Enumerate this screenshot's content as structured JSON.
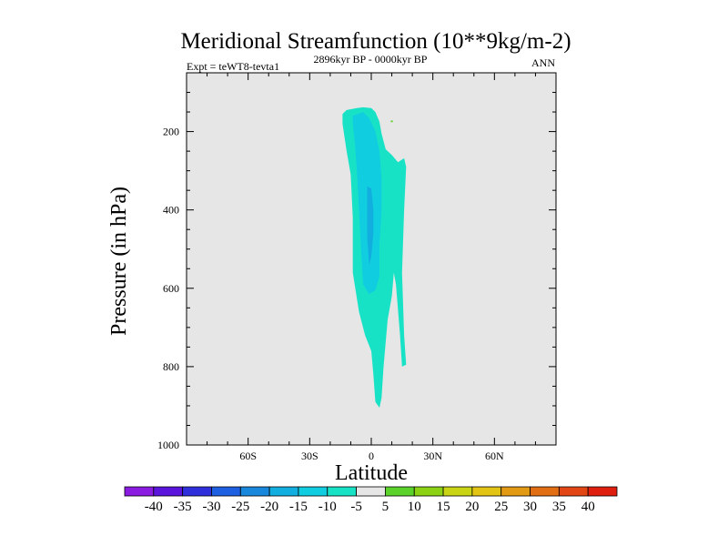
{
  "chart_data": {
    "type": "contour",
    "title": "Meridional Streamfunction (10**9kg/m-2)",
    "subtitle_left": "Expt = teWT8-tevta1",
    "subtitle_center": "2896kyr BP - 0000kyr BP",
    "subtitle_right": "ANN",
    "xlabel": "Latitude",
    "ylabel": "Pressure (in hPa)",
    "xlim": [
      -90,
      90
    ],
    "ylim": [
      1000,
      50
    ],
    "x_ticks": [
      {
        "value": -60,
        "label": "60S"
      },
      {
        "value": -30,
        "label": "30S"
      },
      {
        "value": 0,
        "label": "0"
      },
      {
        "value": 30,
        "label": "30N"
      },
      {
        "value": 60,
        "label": "60N"
      }
    ],
    "y_ticks": [
      {
        "value": 200,
        "label": "200"
      },
      {
        "value": 400,
        "label": "400"
      },
      {
        "value": 600,
        "label": "600"
      },
      {
        "value": 800,
        "label": "800"
      },
      {
        "value": 1000,
        "label": "1000"
      }
    ],
    "background_color": "#e6e6e6",
    "colorbar": {
      "levels": [
        "-40",
        "-35",
        "-30",
        "-25",
        "-20",
        "-15",
        "-10",
        "-5",
        "5",
        "10",
        "15",
        "20",
        "25",
        "30",
        "35",
        "40"
      ],
      "colors": [
        "#8a1be0",
        "#5a14dc",
        "#2f2fdc",
        "#1e5ee0",
        "#1888dc",
        "#13aee0",
        "#10cde0",
        "#18e2c6",
        "#e6e6e6",
        "#5ad22a",
        "#8cd214",
        "#c8d414",
        "#e2c414",
        "#e29a14",
        "#e26e14",
        "#e24614",
        "#e01e10"
      ]
    },
    "regions": [
      {
        "name": "contour-region-minus-5-to-minus-10",
        "level": "-10 to -5",
        "color": "#18e2c6",
        "points": [
          [
            -12,
            145
          ],
          [
            -7,
            140
          ],
          [
            -4,
            138
          ],
          [
            0,
            140
          ],
          [
            2,
            150
          ],
          [
            4,
            175
          ],
          [
            5,
            205
          ],
          [
            7,
            245
          ],
          [
            10,
            260
          ],
          [
            13,
            278
          ],
          [
            16,
            268
          ],
          [
            17,
            290
          ],
          [
            16,
            400
          ],
          [
            15,
            560
          ],
          [
            16,
            720
          ],
          [
            17,
            795
          ],
          [
            15,
            800
          ],
          [
            14,
            720
          ],
          [
            12,
            590
          ],
          [
            11,
            560
          ],
          [
            10,
            620
          ],
          [
            8,
            680
          ],
          [
            6,
            800
          ],
          [
            5,
            880
          ],
          [
            4,
            905
          ],
          [
            2,
            890
          ],
          [
            1,
            820
          ],
          [
            0,
            760
          ],
          [
            -3,
            720
          ],
          [
            -6,
            660
          ],
          [
            -9,
            560
          ],
          [
            -9,
            420
          ],
          [
            -10,
            310
          ],
          [
            -12,
            250
          ],
          [
            -14,
            180
          ],
          [
            -14,
            155
          ]
        ]
      },
      {
        "name": "contour-region-minus-10-to-minus-15",
        "level": "-15 to -10",
        "color": "#10cde0",
        "points": [
          [
            -9,
            160
          ],
          [
            -4,
            150
          ],
          [
            -1,
            165
          ],
          [
            2,
            200
          ],
          [
            4,
            250
          ],
          [
            5,
            320
          ],
          [
            5,
            400
          ],
          [
            4,
            490
          ],
          [
            4,
            570
          ],
          [
            2,
            605
          ],
          [
            -1,
            615
          ],
          [
            -4,
            590
          ],
          [
            -5,
            500
          ],
          [
            -6,
            400
          ],
          [
            -7,
            300
          ],
          [
            -8,
            230
          ],
          [
            -9,
            180
          ]
        ]
      },
      {
        "name": "contour-region-minus-15-to-minus-20",
        "level": "-20 to -15",
        "color": "#13aee0",
        "points": [
          [
            -2,
            340
          ],
          [
            0,
            345
          ],
          [
            1,
            400
          ],
          [
            1,
            460
          ],
          [
            0,
            520
          ],
          [
            -1,
            540
          ],
          [
            -2,
            470
          ],
          [
            -2,
            400
          ]
        ]
      },
      {
        "name": "contour-speck-positive",
        "level": "5 to 10",
        "color": "#5ad22a",
        "points": [
          [
            9.5,
            172
          ],
          [
            10.5,
            172
          ],
          [
            10.5,
            176
          ],
          [
            9.5,
            176
          ]
        ]
      }
    ]
  }
}
